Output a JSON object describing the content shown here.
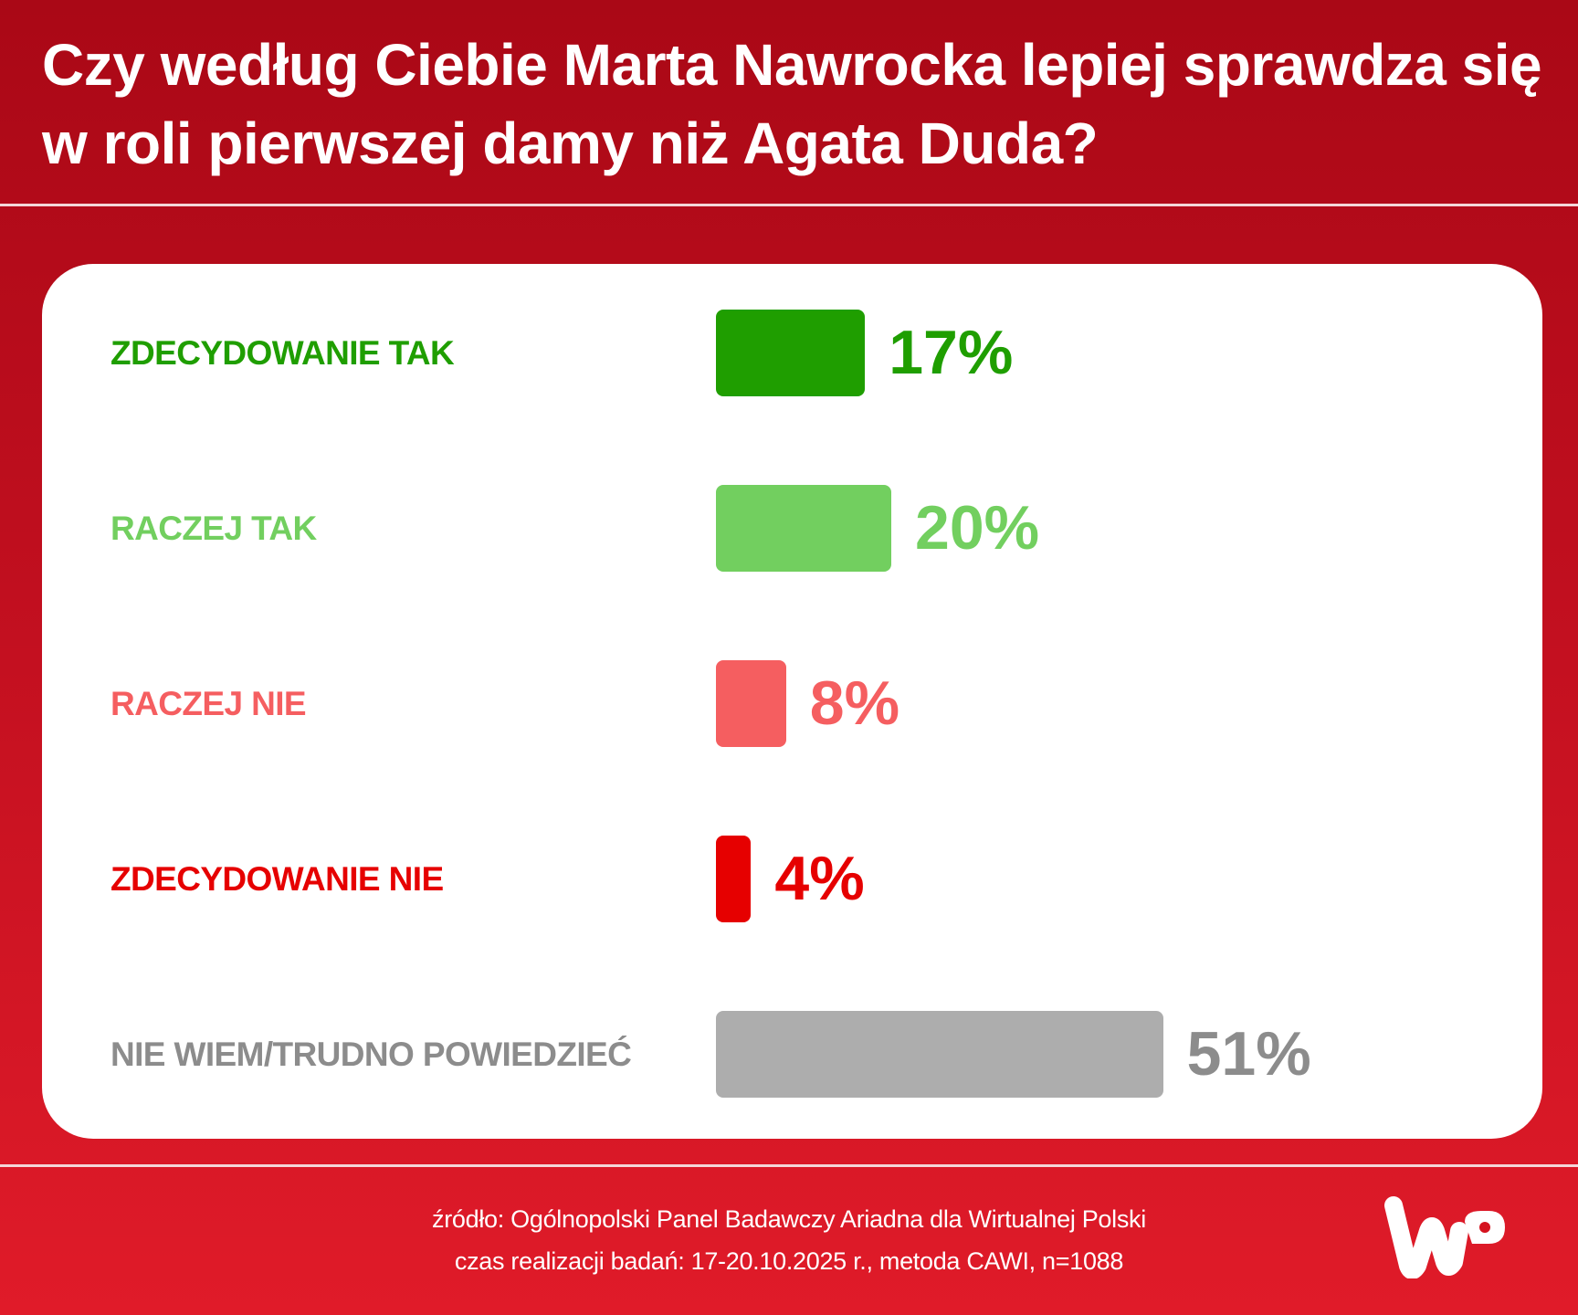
{
  "title": "Czy według Ciebie Marta Nawrocka lepiej sprawdza się w roli pierwszej damy niż Agata Duda?",
  "chart_data": {
    "type": "bar",
    "orientation": "horizontal",
    "categories": [
      "ZDECYDOWANIE TAK",
      "RACZEJ TAK",
      "RACZEJ NIE",
      "ZDECYDOWANIE NIE",
      "NIE WIEM/TRUDNO POWIEDZIEĆ"
    ],
    "values": [
      17,
      20,
      8,
      4,
      51
    ],
    "value_labels": [
      "17%",
      "20%",
      "8%",
      "4%",
      "51%"
    ],
    "colors": [
      "#1f9e00",
      "#72cf5f",
      "#f55e60",
      "#e60000",
      "#adadad"
    ],
    "label_colors": [
      "#1f9e00",
      "#72cf5f",
      "#f55e60",
      "#e60000",
      "#8c8c8c"
    ],
    "unit": "%",
    "grid": false
  },
  "footer": {
    "source": "źródło: Ogólnopolski Panel Badawczy Ariadna dla Wirtualnej Polski",
    "method": "czas realizacji badań: 17-20.10.2025 r., metoda CAWI, n=1088"
  },
  "logo": {
    "text": "WP",
    "icon": "wp-logo-icon"
  }
}
